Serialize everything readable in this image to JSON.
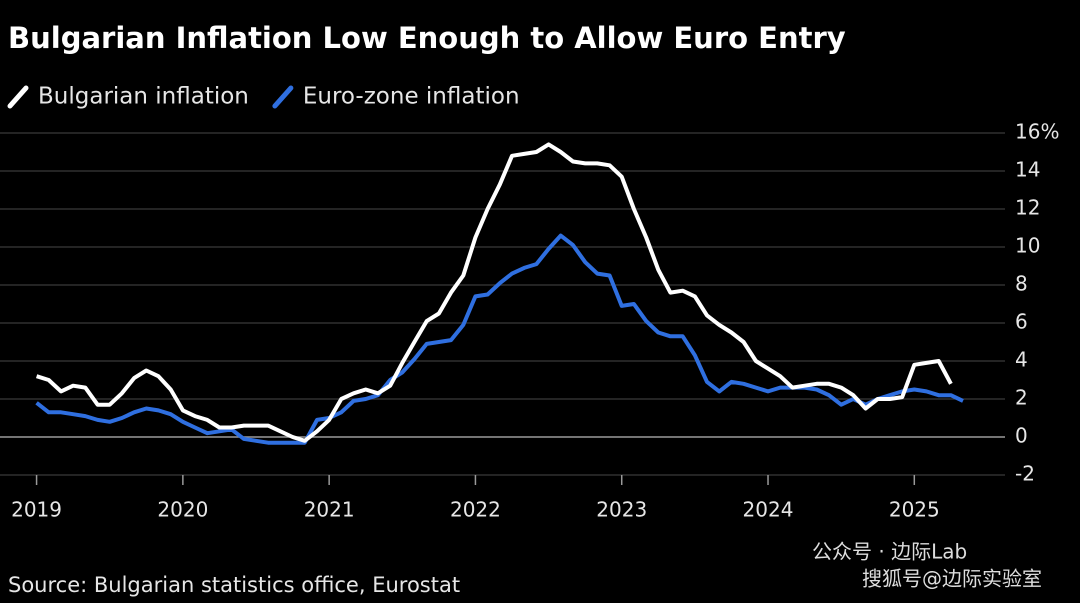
{
  "chart_data": {
    "type": "line",
    "title": "Bulgarian Inflation Low Enough to Allow Euro Entry",
    "source": "Source: Bulgarian statistics office, Eurostat",
    "watermarks": [
      "公众号 · 边际Lab",
      "搜狐号@边际实验室"
    ],
    "x": [
      2019,
      2019.083,
      2019.167,
      2019.25,
      2019.333,
      2019.417,
      2019.5,
      2019.583,
      2019.667,
      2019.75,
      2019.833,
      2019.917,
      2020,
      2020.083,
      2020.167,
      2020.25,
      2020.333,
      2020.417,
      2020.5,
      2020.583,
      2020.667,
      2020.75,
      2020.833,
      2020.917,
      2021,
      2021.083,
      2021.167,
      2021.25,
      2021.333,
      2021.417,
      2021.5,
      2021.583,
      2021.667,
      2021.75,
      2021.833,
      2021.917,
      2022,
      2022.083,
      2022.167,
      2022.25,
      2022.333,
      2022.417,
      2022.5,
      2022.583,
      2022.667,
      2022.75,
      2022.833,
      2022.917,
      2023,
      2023.083,
      2023.167,
      2023.25,
      2023.333,
      2023.417,
      2023.5,
      2023.583,
      2023.667,
      2023.75,
      2023.833,
      2023.917,
      2024,
      2024.083,
      2024.167,
      2024.25,
      2024.333,
      2024.417,
      2024.5,
      2024.583,
      2024.667,
      2024.75,
      2024.833,
      2024.917,
      2025,
      2025.083,
      2025.167,
      2025.25,
      2025.333
    ],
    "series": [
      {
        "name": "Bulgarian inflation",
        "color": "#ffffff",
        "values": [
          3.2,
          3.0,
          2.4,
          2.7,
          2.6,
          1.7,
          1.7,
          2.3,
          3.1,
          3.5,
          3.2,
          2.5,
          1.4,
          1.1,
          0.9,
          0.5,
          0.5,
          0.6,
          0.6,
          0.6,
          0.3,
          0.0,
          -0.2,
          0.3,
          0.9,
          2.0,
          2.3,
          2.5,
          2.3,
          2.7,
          3.9,
          5.0,
          6.1,
          6.5,
          7.6,
          8.5,
          10.5,
          12.0,
          13.3,
          14.8,
          14.9,
          15.0,
          15.4,
          15.0,
          14.5,
          14.4,
          14.4,
          14.3,
          13.7,
          12.0,
          10.5,
          8.8,
          7.6,
          7.7,
          7.4,
          6.4,
          5.9,
          5.5,
          5.0,
          4.0,
          3.6,
          3.2,
          2.6,
          2.7,
          2.8,
          2.8,
          2.6,
          2.2,
          1.5,
          2.0,
          2.0,
          2.1,
          3.8,
          3.9,
          4.0,
          2.8,
          null
        ]
      },
      {
        "name": "Euro-zone inflation",
        "color": "#2f6fe0",
        "values": [
          1.8,
          1.3,
          1.3,
          1.2,
          1.1,
          0.9,
          0.8,
          1.0,
          1.3,
          1.5,
          1.4,
          1.2,
          0.8,
          0.5,
          0.2,
          0.3,
          0.4,
          -0.1,
          -0.2,
          -0.3,
          -0.3,
          -0.3,
          -0.3,
          0.9,
          1.0,
          1.3,
          1.9,
          2.0,
          2.2,
          3.0,
          3.4,
          4.1,
          4.9,
          5.0,
          5.1,
          5.9,
          7.4,
          7.5,
          8.1,
          8.6,
          8.9,
          9.1,
          9.9,
          10.6,
          10.1,
          9.2,
          8.6,
          8.5,
          6.9,
          7.0,
          6.1,
          5.5,
          5.3,
          5.3,
          4.3,
          2.9,
          2.4,
          2.9,
          2.8,
          2.6,
          2.4,
          2.6,
          2.6,
          2.6,
          2.5,
          2.2,
          1.7,
          2.0,
          1.7,
          2.0,
          2.2,
          2.4,
          2.5,
          2.4,
          2.2,
          2.2,
          1.9
        ]
      }
    ],
    "xlim": [
      2018.75,
      2025.62
    ],
    "xticks": [
      2019,
      2020,
      2021,
      2022,
      2023,
      2024,
      2025
    ],
    "ylim": [
      -2,
      16
    ],
    "yticks": [
      -2,
      0,
      2,
      4,
      6,
      8,
      10,
      12,
      14,
      {
        "value": 16,
        "label": "16%"
      }
    ],
    "grid": true
  }
}
